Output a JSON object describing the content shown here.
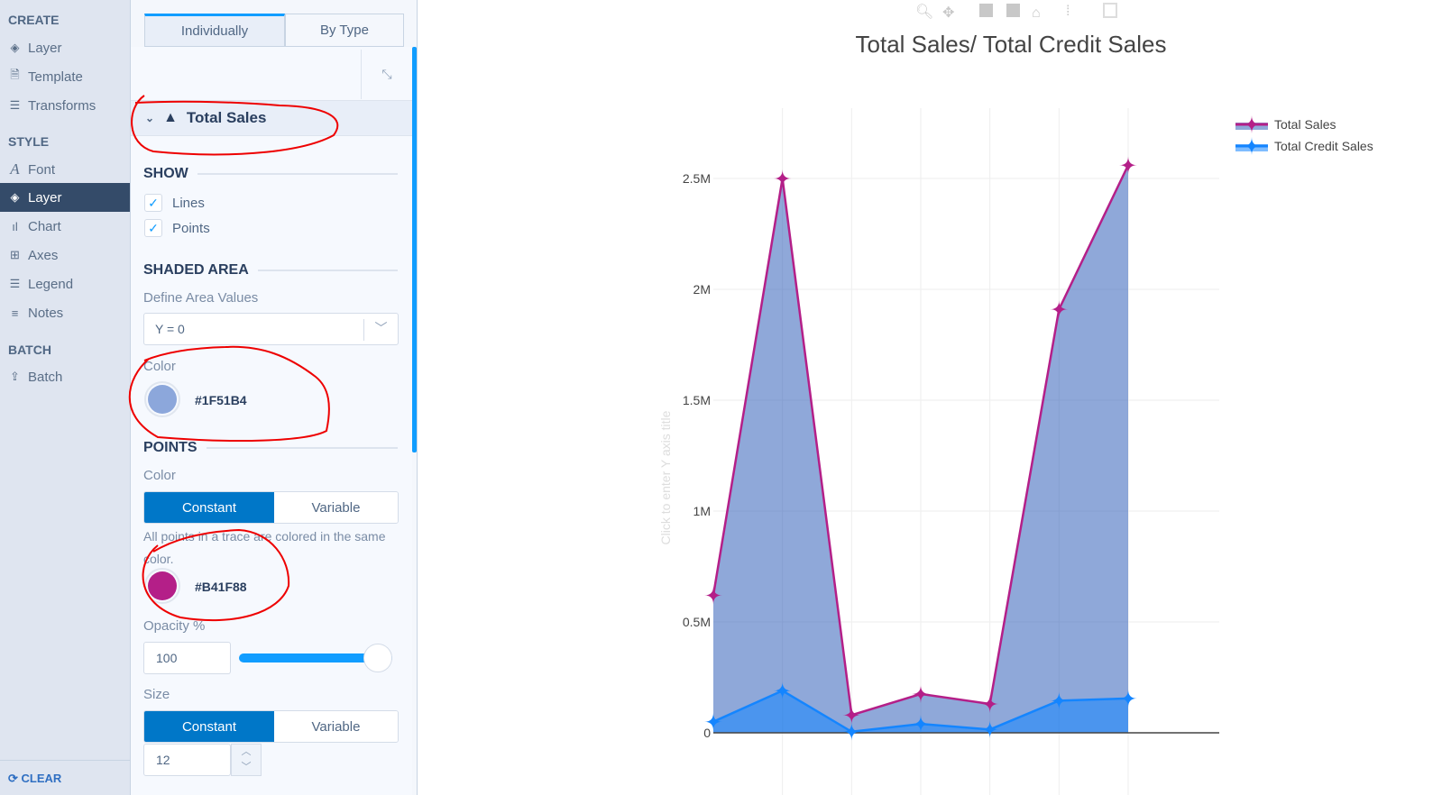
{
  "sidebar": {
    "create_label": "CREATE",
    "style_label": "STYLE",
    "batch_label": "BATCH",
    "clear_label": "CLEAR",
    "create_items": [
      {
        "label": "Layer",
        "icon": "layers-icon"
      },
      {
        "label": "Template",
        "icon": "file-icon"
      },
      {
        "label": "Transforms",
        "icon": "list-icon"
      }
    ],
    "style_items": [
      {
        "label": "Font",
        "icon": "font-icon"
      },
      {
        "label": "Layer",
        "icon": "layers-icon",
        "active": true
      },
      {
        "label": "Chart",
        "icon": "bar-chart-icon"
      },
      {
        "label": "Axes",
        "icon": "grid-icon"
      },
      {
        "label": "Legend",
        "icon": "list-icon"
      },
      {
        "label": "Notes",
        "icon": "text-icon"
      }
    ],
    "batch_items": [
      {
        "label": "Batch",
        "icon": "upload-icon"
      }
    ]
  },
  "panel": {
    "tabs": [
      {
        "label": "Individually",
        "active": true
      },
      {
        "label": "By Type"
      }
    ],
    "trace_name": "Total Sales",
    "show_heading": "SHOW",
    "show_lines": "Lines",
    "show_points": "Points",
    "lines_checked": true,
    "points_checked": true,
    "shaded_heading": "SHADED AREA",
    "define_area_label": "Define Area Values",
    "define_area_value": "Y = 0",
    "area_color_label": "Color",
    "area_color": "#1F51B4",
    "points_heading": "POINTS",
    "points_color_label": "Color",
    "constant_label": "Constant",
    "variable_label": "Variable",
    "points_help": "All points in a trace are colored in the same color.",
    "points_color": "#B41F88",
    "opacity_label": "Opacity %",
    "opacity_value": "100",
    "opacity_fraction": 1.0,
    "size_label": "Size",
    "size_value": "12"
  },
  "chart_data": {
    "type": "area",
    "title": "Total Sales/ Total Credit Sales",
    "ylabel_placeholder": "Click to enter Y axis title",
    "y_ticks": [
      "0",
      "0.5M",
      "1M",
      "1.5M",
      "2M",
      "2.5M"
    ],
    "ylim": [
      0,
      2650000
    ],
    "grid": true,
    "legend_position": "top-right",
    "x": [
      1,
      2,
      3,
      4,
      5,
      6,
      7
    ],
    "series": [
      {
        "name": "Total Sales",
        "values": [
          620000,
          2500000,
          80000,
          175000,
          130000,
          1910000,
          2560000
        ],
        "line_color": "#B41F88",
        "fill_color": "#1F51B4"
      },
      {
        "name": "Total Credit Sales",
        "values": [
          50000,
          190000,
          5000,
          40000,
          15000,
          145000,
          155000
        ],
        "line_color": "#1485ff",
        "fill_color": "#1485ff"
      }
    ]
  }
}
